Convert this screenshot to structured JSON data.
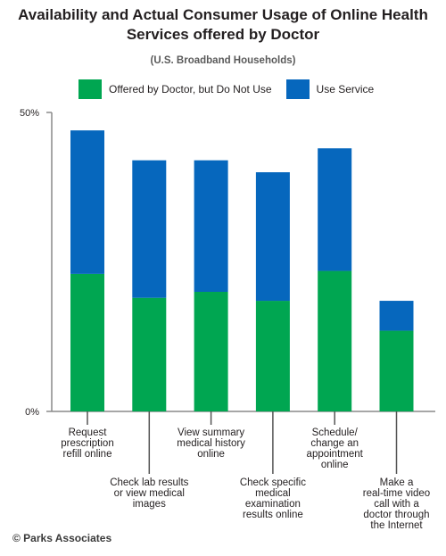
{
  "chart_data": {
    "type": "bar",
    "stacked": true,
    "title": "Availability and Actual Consumer Usage of Online Health Services offered by Doctor",
    "title_lines": [
      "Availability and Actual Consumer Usage of Online Health",
      "Services offered by Doctor"
    ],
    "subtitle": "(U.S. Broadband Households)",
    "ylim": [
      0,
      50
    ],
    "yticks": [
      "0%",
      "50%"
    ],
    "categories": [
      "Request prescription refill online",
      "Check lab results or view medical images",
      "View summary medical history online",
      "Check specific medical examination results online",
      "Schedule/ change an appointment online",
      "Make a real-time video call with a doctor through the Internet"
    ],
    "category_lines": [
      [
        "Request",
        "prescription",
        "refill online"
      ],
      [
        "Check lab results",
        "or view medical",
        "images"
      ],
      [
        "View summary",
        "medical history",
        "online"
      ],
      [
        "Check specific",
        "medical",
        "examination",
        "results online"
      ],
      [
        "Schedule/",
        "change an",
        "appointment",
        "online"
      ],
      [
        "Make a",
        "real-time video",
        "call with a",
        "doctor through",
        "the Internet"
      ]
    ],
    "series": [
      {
        "name": "Offered by Doctor, but Do Not Use",
        "color": "#00a651",
        "values": [
          23,
          19,
          20,
          18.5,
          23.5,
          13.5
        ]
      },
      {
        "name": "Use Service",
        "color": "#0667bd",
        "values": [
          24,
          23,
          22,
          21.5,
          20.5,
          5
        ]
      }
    ],
    "legend_position": "top",
    "grid": false
  },
  "footer": "© Parks Associates"
}
